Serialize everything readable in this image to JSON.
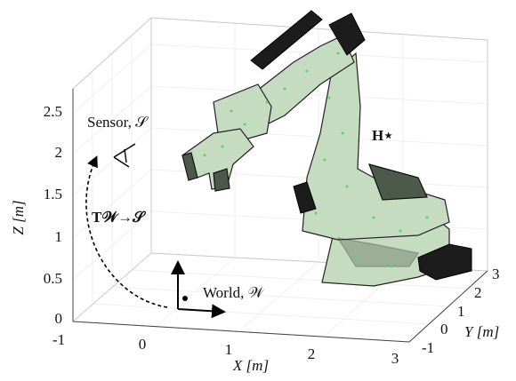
{
  "axes": {
    "z": {
      "label": "Z [m]",
      "ticks": [
        "0",
        "0.5",
        "1",
        "1.5",
        "2",
        "2.5"
      ]
    },
    "x": {
      "label": "X [m]",
      "ticks": [
        "-1",
        "0",
        "1",
        "2",
        "3"
      ]
    },
    "y": {
      "label": "Y [m]",
      "ticks": [
        "-1",
        "0",
        "1",
        "2",
        "3"
      ]
    }
  },
  "annotations": {
    "sensor": "Sensor, 𝒮",
    "world": "World, 𝒲",
    "target": "H⋆",
    "transform": "T𝒲→𝒮"
  }
}
